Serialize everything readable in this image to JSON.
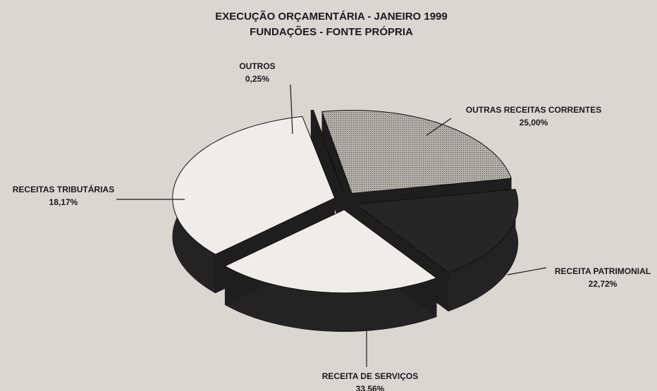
{
  "chart_data": {
    "type": "pie",
    "title": "EXECUÇÃO ORÇAMENTÁRIA - JANEIRO 1999",
    "subtitle": "FUNDAÇÕES - FONTE PRÓPRIA",
    "categories": [
      "OUTROS",
      "OUTRAS RECEITAS CORRENTES",
      "RECEITAS TRIBUTÁRIAS",
      "RECEITA PATRIMONIAL",
      "RECEITA DE SERVIÇOS"
    ],
    "values": [
      0.25,
      25.0,
      18.17,
      22.72,
      33.56
    ],
    "value_labels": [
      "0,25%",
      "25,00%",
      "18,17%",
      "22,72%",
      "33,56%"
    ],
    "colors": [
      "#262626",
      "#a9a7a2",
      "#262626",
      "#eeede9",
      "#eeede9"
    ]
  }
}
